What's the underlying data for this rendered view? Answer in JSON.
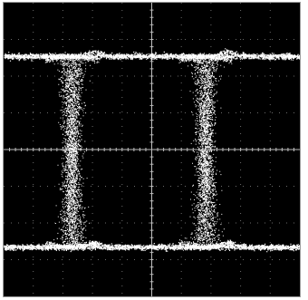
{
  "window": {
    "title": ""
  },
  "chart_data": {
    "type": "scatter",
    "title": "",
    "xlabel": "",
    "ylabel": "",
    "xlim": [
      0,
      10
    ],
    "ylim": [
      -4,
      4
    ],
    "grid": true,
    "grid_divisions": {
      "x": 10,
      "y": 8
    },
    "legend": "none",
    "colors": {
      "background": "#000000",
      "trace": "#ffffff",
      "grid": "#6a6a6a",
      "frame": "#9a9a9a"
    },
    "eye_diagram": {
      "high_level": 2.55,
      "low_level": -2.65,
      "crossing_centers": [
        2.3,
        6.8
      ],
      "crossing_width_at_rails": 0.55,
      "crossing_width_at_center": 0.32,
      "overshoot": 0.12
    }
  }
}
